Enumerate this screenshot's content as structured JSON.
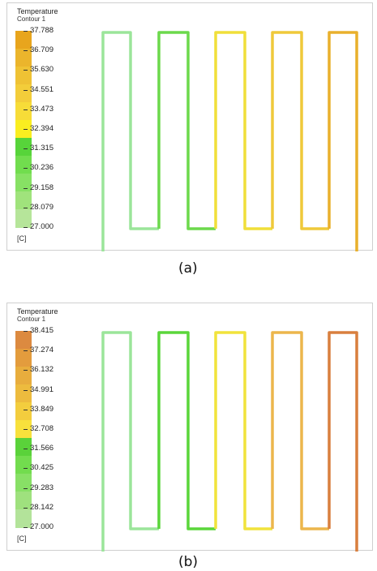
{
  "figures": [
    {
      "id": "a",
      "legend_title": "Temperature",
      "legend_subtitle": "Contour 1",
      "unit": "[C]",
      "caption": "(a)",
      "levels": [
        "37.788",
        "36.709",
        "35.630",
        "34.551",
        "33.473",
        "32.394",
        "31.315",
        "30.236",
        "29.158",
        "28.079",
        "27.000"
      ],
      "colors": [
        "#e8a51d",
        "#ebb52c",
        "#efc234",
        "#f3cd3a",
        "#f7dc38",
        "#faee20",
        "#57d43a",
        "#71dd4e",
        "#87e164",
        "#a0e37c",
        "#b6e59a"
      ],
      "loop_colors": [
        "#9be59a",
        "#6cd94c",
        "#f0df3a",
        "#efc93a",
        "#e9b02c"
      ]
    },
    {
      "id": "b",
      "legend_title": "Temperature",
      "legend_subtitle": "Contour 1",
      "unit": "[C]",
      "caption": "(b)",
      "levels": [
        "38.415",
        "37.274",
        "36.132",
        "34.991",
        "33.849",
        "32.708",
        "31.566",
        "30.425",
        "29.283",
        "28.142",
        "27.000"
      ],
      "colors": [
        "#dc8a40",
        "#e39c3d",
        "#e8ad3d",
        "#edbb3e",
        "#f3cd3e",
        "#f8e13c",
        "#5ad23a",
        "#72dc4e",
        "#88e066",
        "#9fe17e",
        "#b3e39a"
      ],
      "loop_colors": [
        "#9be59a",
        "#5ad63a",
        "#f1e33c",
        "#ecb64c",
        "#d97f3e"
      ]
    }
  ]
}
